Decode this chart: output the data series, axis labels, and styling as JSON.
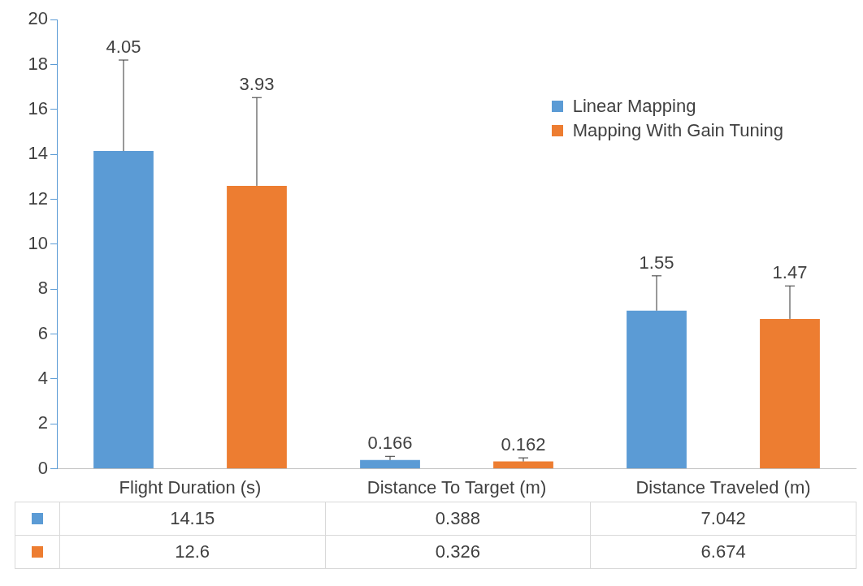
{
  "chart_data": {
    "type": "bar",
    "categories": [
      "Flight Duration (s)",
      "Distance To Target (m)",
      "Distance Traveled (m)"
    ],
    "series": [
      {
        "name": "Linear Mapping",
        "color": "#5b9bd5",
        "values": [
          14.15,
          0.388,
          7.042
        ],
        "errors": [
          [
            14.15,
            18.2
          ],
          [
            0.388,
            0.554
          ],
          [
            7.042,
            8.592
          ]
        ]
      },
      {
        "name": "Mapping With Gain Tuning",
        "color": "#ed7d31",
        "values": [
          12.6,
          0.326,
          6.674
        ],
        "errors": [
          [
            12.6,
            16.53
          ],
          [
            0.326,
            0.488
          ],
          [
            6.674,
            8.144
          ]
        ]
      }
    ],
    "ylim": [
      0,
      20
    ],
    "yticks": [
      0,
      2,
      4,
      6,
      8,
      10,
      12,
      14,
      16,
      18,
      20
    ],
    "grid": false,
    "legend": "top right",
    "data_labels": true,
    "annotations": [
      "4.05",
      "3.93",
      "0.166",
      "0.162",
      "1.55",
      "1.47"
    ]
  }
}
